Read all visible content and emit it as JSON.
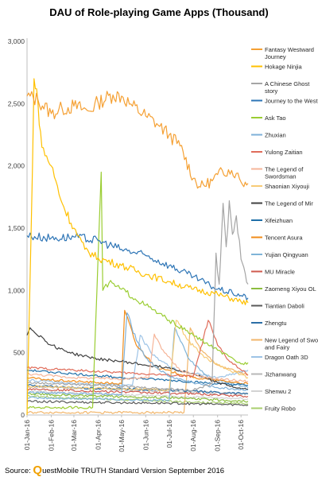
{
  "chart_data": {
    "type": "line",
    "title": "DAU of Role-playing Game Apps (Thousand)",
    "ylim": [
      0,
      3000
    ],
    "yticks": [
      "0",
      "500",
      "1,000",
      "1,500",
      "2,000",
      "2,500",
      "3,000"
    ],
    "ytick_values": [
      0,
      500,
      1000,
      1500,
      2000,
      2500,
      3000
    ],
    "x_start": "2016-01-01",
    "x_end": "2016-10-10",
    "xticks": [
      {
        "date": "2016-01-01",
        "label": "01-Jan-16"
      },
      {
        "date": "2016-02-01",
        "label": "01-Feb-16"
      },
      {
        "date": "2016-03-01",
        "label": "01-Mar-16"
      },
      {
        "date": "2016-04-01",
        "label": "01-Apr-16"
      },
      {
        "date": "2016-05-01",
        "label": "01-May-16"
      },
      {
        "date": "2016-06-01",
        "label": "01-Jun-16"
      },
      {
        "date": "2016-07-01",
        "label": "01-Jul-16"
      },
      {
        "date": "2016-08-01",
        "label": "01-Aug-16"
      },
      {
        "date": "2016-09-01",
        "label": "01-Sep-16"
      },
      {
        "date": "2016-10-01",
        "label": "01-Oct-16"
      }
    ],
    "grid": false,
    "legend_position": "right",
    "series": [
      {
        "name": "Fantasy Westward Journey",
        "color": "#f5a033",
        "points": [
          [
            "2016-01-01",
            2560
          ],
          [
            "2016-01-15",
            2530
          ],
          [
            "2016-02-01",
            2420
          ],
          [
            "2016-02-15",
            2460
          ],
          [
            "2016-03-01",
            2480
          ],
          [
            "2016-03-20",
            2440
          ],
          [
            "2016-04-01",
            2510
          ],
          [
            "2016-04-20",
            2570
          ],
          [
            "2016-05-01",
            2560
          ],
          [
            "2016-05-15",
            2480
          ],
          [
            "2016-06-01",
            2400
          ],
          [
            "2016-06-15",
            2340
          ],
          [
            "2016-07-01",
            2250
          ],
          [
            "2016-07-15",
            2160
          ],
          [
            "2016-08-01",
            1900
          ],
          [
            "2016-08-10",
            1830
          ],
          [
            "2016-08-25",
            1880
          ],
          [
            "2016-09-01",
            1930
          ],
          [
            "2016-09-15",
            1970
          ],
          [
            "2016-09-25",
            1940
          ],
          [
            "2016-10-01",
            1870
          ],
          [
            "2016-10-10",
            1860
          ]
        ]
      },
      {
        "name": "Hokage Ninjia",
        "color": "#ffc000",
        "points": [
          [
            "2016-01-01",
            0
          ],
          [
            "2016-01-06",
            1400
          ],
          [
            "2016-01-10",
            2700
          ],
          [
            "2016-01-15",
            2500
          ],
          [
            "2016-01-20",
            2150
          ],
          [
            "2016-02-01",
            2000
          ],
          [
            "2016-02-15",
            1700
          ],
          [
            "2016-03-01",
            1500
          ],
          [
            "2016-03-15",
            1330
          ],
          [
            "2016-04-01",
            1260
          ],
          [
            "2016-05-01",
            1200
          ],
          [
            "2016-06-01",
            1130
          ],
          [
            "2016-07-01",
            1070
          ],
          [
            "2016-08-01",
            1010
          ],
          [
            "2016-09-01",
            970
          ],
          [
            "2016-10-01",
            910
          ],
          [
            "2016-10-10",
            900
          ]
        ]
      },
      {
        "name": "A Chinese Ghost story",
        "color": "#a5a5a5",
        "points": [
          [
            "2016-01-01",
            260
          ],
          [
            "2016-04-01",
            240
          ],
          [
            "2016-08-01",
            200
          ],
          [
            "2016-08-25",
            250
          ],
          [
            "2016-08-30",
            1300
          ],
          [
            "2016-09-03",
            1050
          ],
          [
            "2016-09-08",
            1700
          ],
          [
            "2016-09-12",
            1350
          ],
          [
            "2016-09-16",
            1720
          ],
          [
            "2016-09-20",
            1450
          ],
          [
            "2016-09-25",
            1600
          ],
          [
            "2016-10-01",
            1250
          ],
          [
            "2016-10-10",
            1050
          ]
        ]
      },
      {
        "name": "Journey to the West",
        "color": "#2e75b6",
        "points": [
          [
            "2016-01-01",
            1440
          ],
          [
            "2016-02-01",
            1420
          ],
          [
            "2016-03-01",
            1430
          ],
          [
            "2016-04-01",
            1400
          ],
          [
            "2016-05-01",
            1330
          ],
          [
            "2016-06-01",
            1280
          ],
          [
            "2016-07-01",
            1200
          ],
          [
            "2016-08-01",
            1110
          ],
          [
            "2016-09-01",
            1010
          ],
          [
            "2016-09-20",
            980
          ],
          [
            "2016-10-01",
            960
          ],
          [
            "2016-10-10",
            940
          ]
        ]
      },
      {
        "name": "Ask Tao",
        "color": "#9acd32",
        "points": [
          [
            "2016-01-01",
            60
          ],
          [
            "2016-03-25",
            60
          ],
          [
            "2016-04-05",
            1950
          ],
          [
            "2016-04-07",
            1000
          ],
          [
            "2016-04-15",
            1060
          ],
          [
            "2016-05-01",
            1010
          ],
          [
            "2016-06-01",
            880
          ],
          [
            "2016-07-01",
            760
          ],
          [
            "2016-08-01",
            640
          ],
          [
            "2016-09-01",
            520
          ],
          [
            "2016-10-01",
            410
          ],
          [
            "2016-10-10",
            420
          ]
        ]
      },
      {
        "name": "Zhuxian",
        "color": "#7eb0d8",
        "points": [
          [
            "2016-01-01",
            180
          ],
          [
            "2016-04-01",
            170
          ],
          [
            "2016-05-01",
            160
          ],
          [
            "2016-05-08",
            820
          ],
          [
            "2016-05-20",
            600
          ],
          [
            "2016-06-01",
            460
          ],
          [
            "2016-06-15",
            380
          ],
          [
            "2016-07-01",
            310
          ],
          [
            "2016-08-01",
            260
          ],
          [
            "2016-09-01",
            220
          ],
          [
            "2016-10-10",
            200
          ]
        ]
      },
      {
        "name": "Yulong Zaitian",
        "color": "#e06c5a",
        "points": [
          [
            "2016-01-01",
            380
          ],
          [
            "2016-03-01",
            360
          ],
          [
            "2016-05-01",
            340
          ],
          [
            "2016-07-01",
            320
          ],
          [
            "2016-08-01",
            310
          ],
          [
            "2016-08-20",
            760
          ],
          [
            "2016-09-01",
            560
          ],
          [
            "2016-09-15",
            440
          ],
          [
            "2016-10-10",
            320
          ]
        ]
      },
      {
        "name": "The Legend of Swordsman",
        "color": "#f6b599",
        "points": [
          [
            "2016-01-01",
            330
          ],
          [
            "2016-03-01",
            300
          ],
          [
            "2016-05-01",
            290
          ],
          [
            "2016-06-05",
            300
          ],
          [
            "2016-06-12",
            650
          ],
          [
            "2016-06-25",
            500
          ],
          [
            "2016-07-15",
            360
          ],
          [
            "2016-08-15",
            300
          ],
          [
            "2016-10-10",
            270
          ]
        ]
      },
      {
        "name": "Shaonian Xiyouji",
        "color": "#f7cb76",
        "points": [
          [
            "2016-01-01",
            230
          ],
          [
            "2016-03-01",
            220
          ],
          [
            "2016-05-01",
            210
          ],
          [
            "2016-07-01",
            200
          ],
          [
            "2016-07-10",
            760
          ],
          [
            "2016-07-25",
            600
          ],
          [
            "2016-08-15",
            460
          ],
          [
            "2016-09-15",
            360
          ],
          [
            "2016-10-10",
            300
          ]
        ]
      },
      {
        "name": "The Legend of Mir",
        "color": "#404040",
        "points": [
          [
            "2016-01-01",
            640
          ],
          [
            "2016-01-05",
            700
          ],
          [
            "2016-02-01",
            560
          ],
          [
            "2016-03-01",
            490
          ],
          [
            "2016-04-01",
            450
          ],
          [
            "2016-05-01",
            430
          ],
          [
            "2016-06-01",
            400
          ],
          [
            "2016-07-01",
            380
          ],
          [
            "2016-08-01",
            330
          ],
          [
            "2016-09-01",
            260
          ],
          [
            "2016-10-01",
            210
          ],
          [
            "2016-10-10",
            210
          ]
        ]
      },
      {
        "name": "Xifeizhuan",
        "color": "#1f6fa8",
        "points": [
          [
            "2016-01-01",
            360
          ],
          [
            "2016-03-01",
            330
          ],
          [
            "2016-05-01",
            300
          ],
          [
            "2016-07-01",
            280
          ],
          [
            "2016-09-01",
            250
          ],
          [
            "2016-10-10",
            240
          ]
        ]
      },
      {
        "name": "Tencent Asura",
        "color": "#f08c1a",
        "points": [
          [
            "2016-01-01",
            300
          ],
          [
            "2016-02-01",
            280
          ],
          [
            "2016-04-01",
            260
          ],
          [
            "2016-05-01",
            250
          ],
          [
            "2016-05-05",
            840
          ],
          [
            "2016-05-20",
            560
          ],
          [
            "2016-06-15",
            380
          ],
          [
            "2016-08-01",
            300
          ],
          [
            "2016-10-10",
            250
          ]
        ]
      },
      {
        "name": "Yujian Qingyuan",
        "color": "#7fb4d8",
        "points": [
          [
            "2016-01-01",
            140
          ],
          [
            "2016-04-01",
            130
          ],
          [
            "2016-06-01",
            120
          ],
          [
            "2016-07-01",
            120
          ],
          [
            "2016-07-08",
            700
          ],
          [
            "2016-07-25",
            460
          ],
          [
            "2016-08-20",
            300
          ],
          [
            "2016-10-10",
            220
          ]
        ]
      },
      {
        "name": "MU Miracle",
        "color": "#cf5a4d",
        "points": [
          [
            "2016-01-01",
            210
          ],
          [
            "2016-04-01",
            190
          ],
          [
            "2016-06-01",
            180
          ],
          [
            "2016-08-01",
            170
          ],
          [
            "2016-10-10",
            150
          ]
        ]
      },
      {
        "name": "Zaomeng Xiyou OL",
        "color": "#8cbd3f",
        "points": [
          [
            "2016-01-01",
            170
          ],
          [
            "2016-04-01",
            150
          ],
          [
            "2016-07-01",
            140
          ],
          [
            "2016-10-10",
            110
          ]
        ]
      },
      {
        "name": "Tiantian Daboli",
        "color": "#595959",
        "points": [
          [
            "2016-01-01",
            110
          ],
          [
            "2016-04-01",
            100
          ],
          [
            "2016-07-01",
            95
          ],
          [
            "2016-10-10",
            80
          ]
        ]
      },
      {
        "name": "Zhengtu",
        "color": "#2c6ea6",
        "points": [
          [
            "2016-01-01",
            240
          ],
          [
            "2016-03-01",
            220
          ],
          [
            "2016-05-01",
            210
          ],
          [
            "2016-07-01",
            200
          ],
          [
            "2016-10-10",
            170
          ]
        ]
      },
      {
        "name": "New Legend of Sword and Fairy",
        "color": "#f2b66b",
        "points": [
          [
            "2016-01-01",
            20
          ],
          [
            "2016-07-20",
            20
          ],
          [
            "2016-07-28",
            700
          ],
          [
            "2016-08-10",
            520
          ],
          [
            "2016-09-01",
            400
          ],
          [
            "2016-10-10",
            320
          ]
        ]
      },
      {
        "name": "Dragon Oath 3D",
        "color": "#9dc3e6",
        "points": [
          [
            "2016-01-01",
            280
          ],
          [
            "2016-03-01",
            250
          ],
          [
            "2016-05-15",
            240
          ],
          [
            "2016-05-25",
            640
          ],
          [
            "2016-06-10",
            480
          ],
          [
            "2016-07-10",
            360
          ],
          [
            "2016-09-01",
            300
          ],
          [
            "2016-10-10",
            360
          ]
        ]
      },
      {
        "name": "Jizhanwang",
        "color": "#b7b7b7",
        "points": [
          [
            "2016-01-01",
            230
          ],
          [
            "2016-04-01",
            210
          ],
          [
            "2016-07-01",
            190
          ],
          [
            "2016-10-10",
            170
          ]
        ]
      },
      {
        "name": "Shenwu 2",
        "color": "#d3d3d3",
        "points": [
          [
            "2016-01-01",
            190
          ],
          [
            "2016-04-01",
            170
          ],
          [
            "2016-07-01",
            150
          ],
          [
            "2016-10-10",
            130
          ]
        ]
      },
      {
        "name": "Fruity Robo",
        "color": "#a9cf6e",
        "points": [
          [
            "2016-01-01",
            150
          ],
          [
            "2016-04-01",
            130
          ],
          [
            "2016-07-01",
            110
          ],
          [
            "2016-10-10",
            90
          ]
        ]
      }
    ]
  },
  "footer": {
    "source_label": "Source: ",
    "brand_initial": "Q",
    "brand_rest": "uestMobile TRUTH Standard Version September 2016"
  }
}
